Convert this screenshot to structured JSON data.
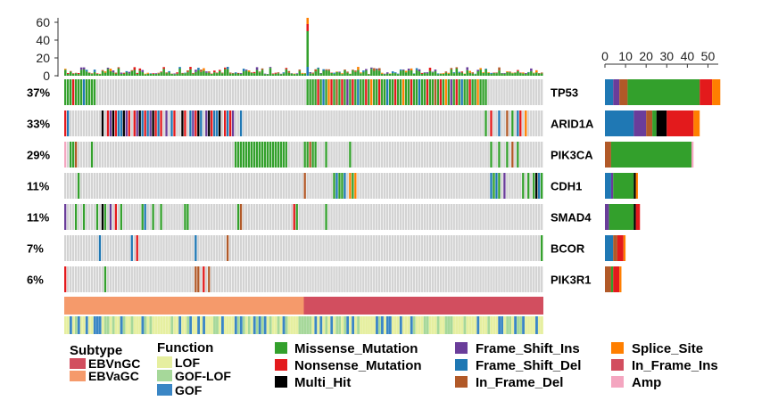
{
  "chart_data": [
    {
      "type": "bar",
      "role": "top-mutation-burden",
      "ylim": [
        0,
        65
      ],
      "yticks": [
        0,
        20,
        40,
        60
      ],
      "ytick_labels": [
        "0",
        "20",
        "40",
        "60"
      ],
      "n_samples": 180,
      "spike_sample_index": 91,
      "spike_segments": [
        {
          "class": "Frame_Shift_Del",
          "value": 10
        },
        {
          "class": "Missense_Mutation",
          "value": 40
        },
        {
          "class": "Nonsense_Mutation",
          "value": 8
        },
        {
          "class": "Splice_Site",
          "value": 7
        }
      ],
      "typical_value_range": [
        2,
        10
      ]
    },
    {
      "type": "heatmap",
      "role": "oncoprint",
      "n_samples": 180,
      "genes": [
        {
          "name": "TP53",
          "pct": "37%"
        },
        {
          "name": "ARID1A",
          "pct": "33%"
        },
        {
          "name": "PIK3CA",
          "pct": "29%"
        },
        {
          "name": "CDH1",
          "pct": "11%"
        },
        {
          "name": "SMAD4",
          "pct": "11%"
        },
        {
          "name": "BCOR",
          "pct": "7%"
        },
        {
          "name": "PIK3R1",
          "pct": "6%"
        }
      ],
      "annotation_tracks": [
        {
          "name": "Subtype",
          "split_index": 90,
          "left": "EBVaGC",
          "right": "EBVnGC"
        },
        {
          "name": "Function"
        }
      ]
    },
    {
      "type": "bar",
      "role": "right-gene-counts",
      "orientation": "horizontal",
      "xlim": [
        0,
        55
      ],
      "xticks": [
        0,
        10,
        20,
        30,
        40,
        50
      ],
      "xtick_labels": [
        "0",
        "10",
        "20",
        "30",
        "40",
        "50"
      ],
      "series_order": [
        "Frame_Shift_Del",
        "Frame_Shift_Ins",
        "In_Frame_Del",
        "Missense_Mutation",
        "Multi_Hit",
        "Nonsense_Mutation",
        "Splice_Site",
        "Amp"
      ],
      "rows": [
        {
          "gene": "TP53",
          "Frame_Shift_Del": 4,
          "Frame_Shift_Ins": 3,
          "In_Frame_Del": 4,
          "Missense_Mutation": 35,
          "Multi_Hit": 0,
          "Nonsense_Mutation": 6,
          "Splice_Site": 4,
          "Amp": 0
        },
        {
          "gene": "ARID1A",
          "Frame_Shift_Del": 14,
          "Frame_Shift_Ins": 6,
          "In_Frame_Del": 3,
          "Missense_Mutation": 2,
          "Multi_Hit": 5,
          "Nonsense_Mutation": 13,
          "Splice_Site": 3,
          "Amp": 0
        },
        {
          "gene": "PIK3CA",
          "Frame_Shift_Del": 0,
          "Frame_Shift_Ins": 0,
          "In_Frame_Del": 3,
          "Missense_Mutation": 39,
          "Multi_Hit": 0,
          "Nonsense_Mutation": 0,
          "Splice_Site": 0,
          "Amp": 1
        },
        {
          "gene": "CDH1",
          "Frame_Shift_Del": 3,
          "Frame_Shift_Ins": 1,
          "In_Frame_Del": 0,
          "Missense_Mutation": 10,
          "Multi_Hit": 1,
          "Nonsense_Mutation": 0,
          "Splice_Site": 1,
          "Amp": 0
        },
        {
          "gene": "SMAD4",
          "Frame_Shift_Del": 0,
          "Frame_Shift_Ins": 2,
          "In_Frame_Del": 0,
          "Missense_Mutation": 12,
          "Multi_Hit": 1,
          "Nonsense_Mutation": 2,
          "Splice_Site": 0,
          "Amp": 0
        },
        {
          "gene": "BCOR",
          "Frame_Shift_Del": 4,
          "Frame_Shift_Ins": 0,
          "In_Frame_Del": 2,
          "Missense_Mutation": 0,
          "Multi_Hit": 0,
          "Nonsense_Mutation": 3,
          "Splice_Site": 1,
          "Amp": 0
        },
        {
          "gene": "PIK3R1",
          "Frame_Shift_Del": 0,
          "Frame_Shift_Ins": 0,
          "In_Frame_Del": 3,
          "Missense_Mutation": 1,
          "Multi_Hit": 0,
          "Nonsense_Mutation": 3,
          "Splice_Site": 1,
          "Amp": 0
        }
      ]
    }
  ],
  "legend": {
    "subtype": {
      "title": "Subtype",
      "items": [
        {
          "label": "EBVnGC",
          "color": "#D24E5F"
        },
        {
          "label": "EBVaGC",
          "color": "#F59A6B"
        }
      ]
    },
    "function": {
      "title": "Function",
      "items": [
        {
          "label": "LOF",
          "color": "#E6EFA0"
        },
        {
          "label": "GOF-LOF",
          "color": "#A6D89A"
        },
        {
          "label": "GOF",
          "color": "#3A86C5"
        }
      ]
    },
    "variants": [
      {
        "label": "Missense_Mutation",
        "color": "#33A02C"
      },
      {
        "label": "Nonsense_Mutation",
        "color": "#E31A1C"
      },
      {
        "label": "Multi_Hit",
        "color": "#000000"
      },
      {
        "label": "Frame_Shift_Ins",
        "color": "#6A3D9A"
      },
      {
        "label": "Frame_Shift_Del",
        "color": "#1F78B4"
      },
      {
        "label": "In_Frame_Del",
        "color": "#B15928"
      },
      {
        "label": "Splice_Site",
        "color": "#FF7F00"
      },
      {
        "label": "In_Frame_Ins",
        "color": "#D24E5F"
      },
      {
        "label": "Amp",
        "color": "#F4A6C0"
      }
    ]
  },
  "colors": {
    "empty_cell": "#D3D3D3",
    "axis": "#333333"
  }
}
